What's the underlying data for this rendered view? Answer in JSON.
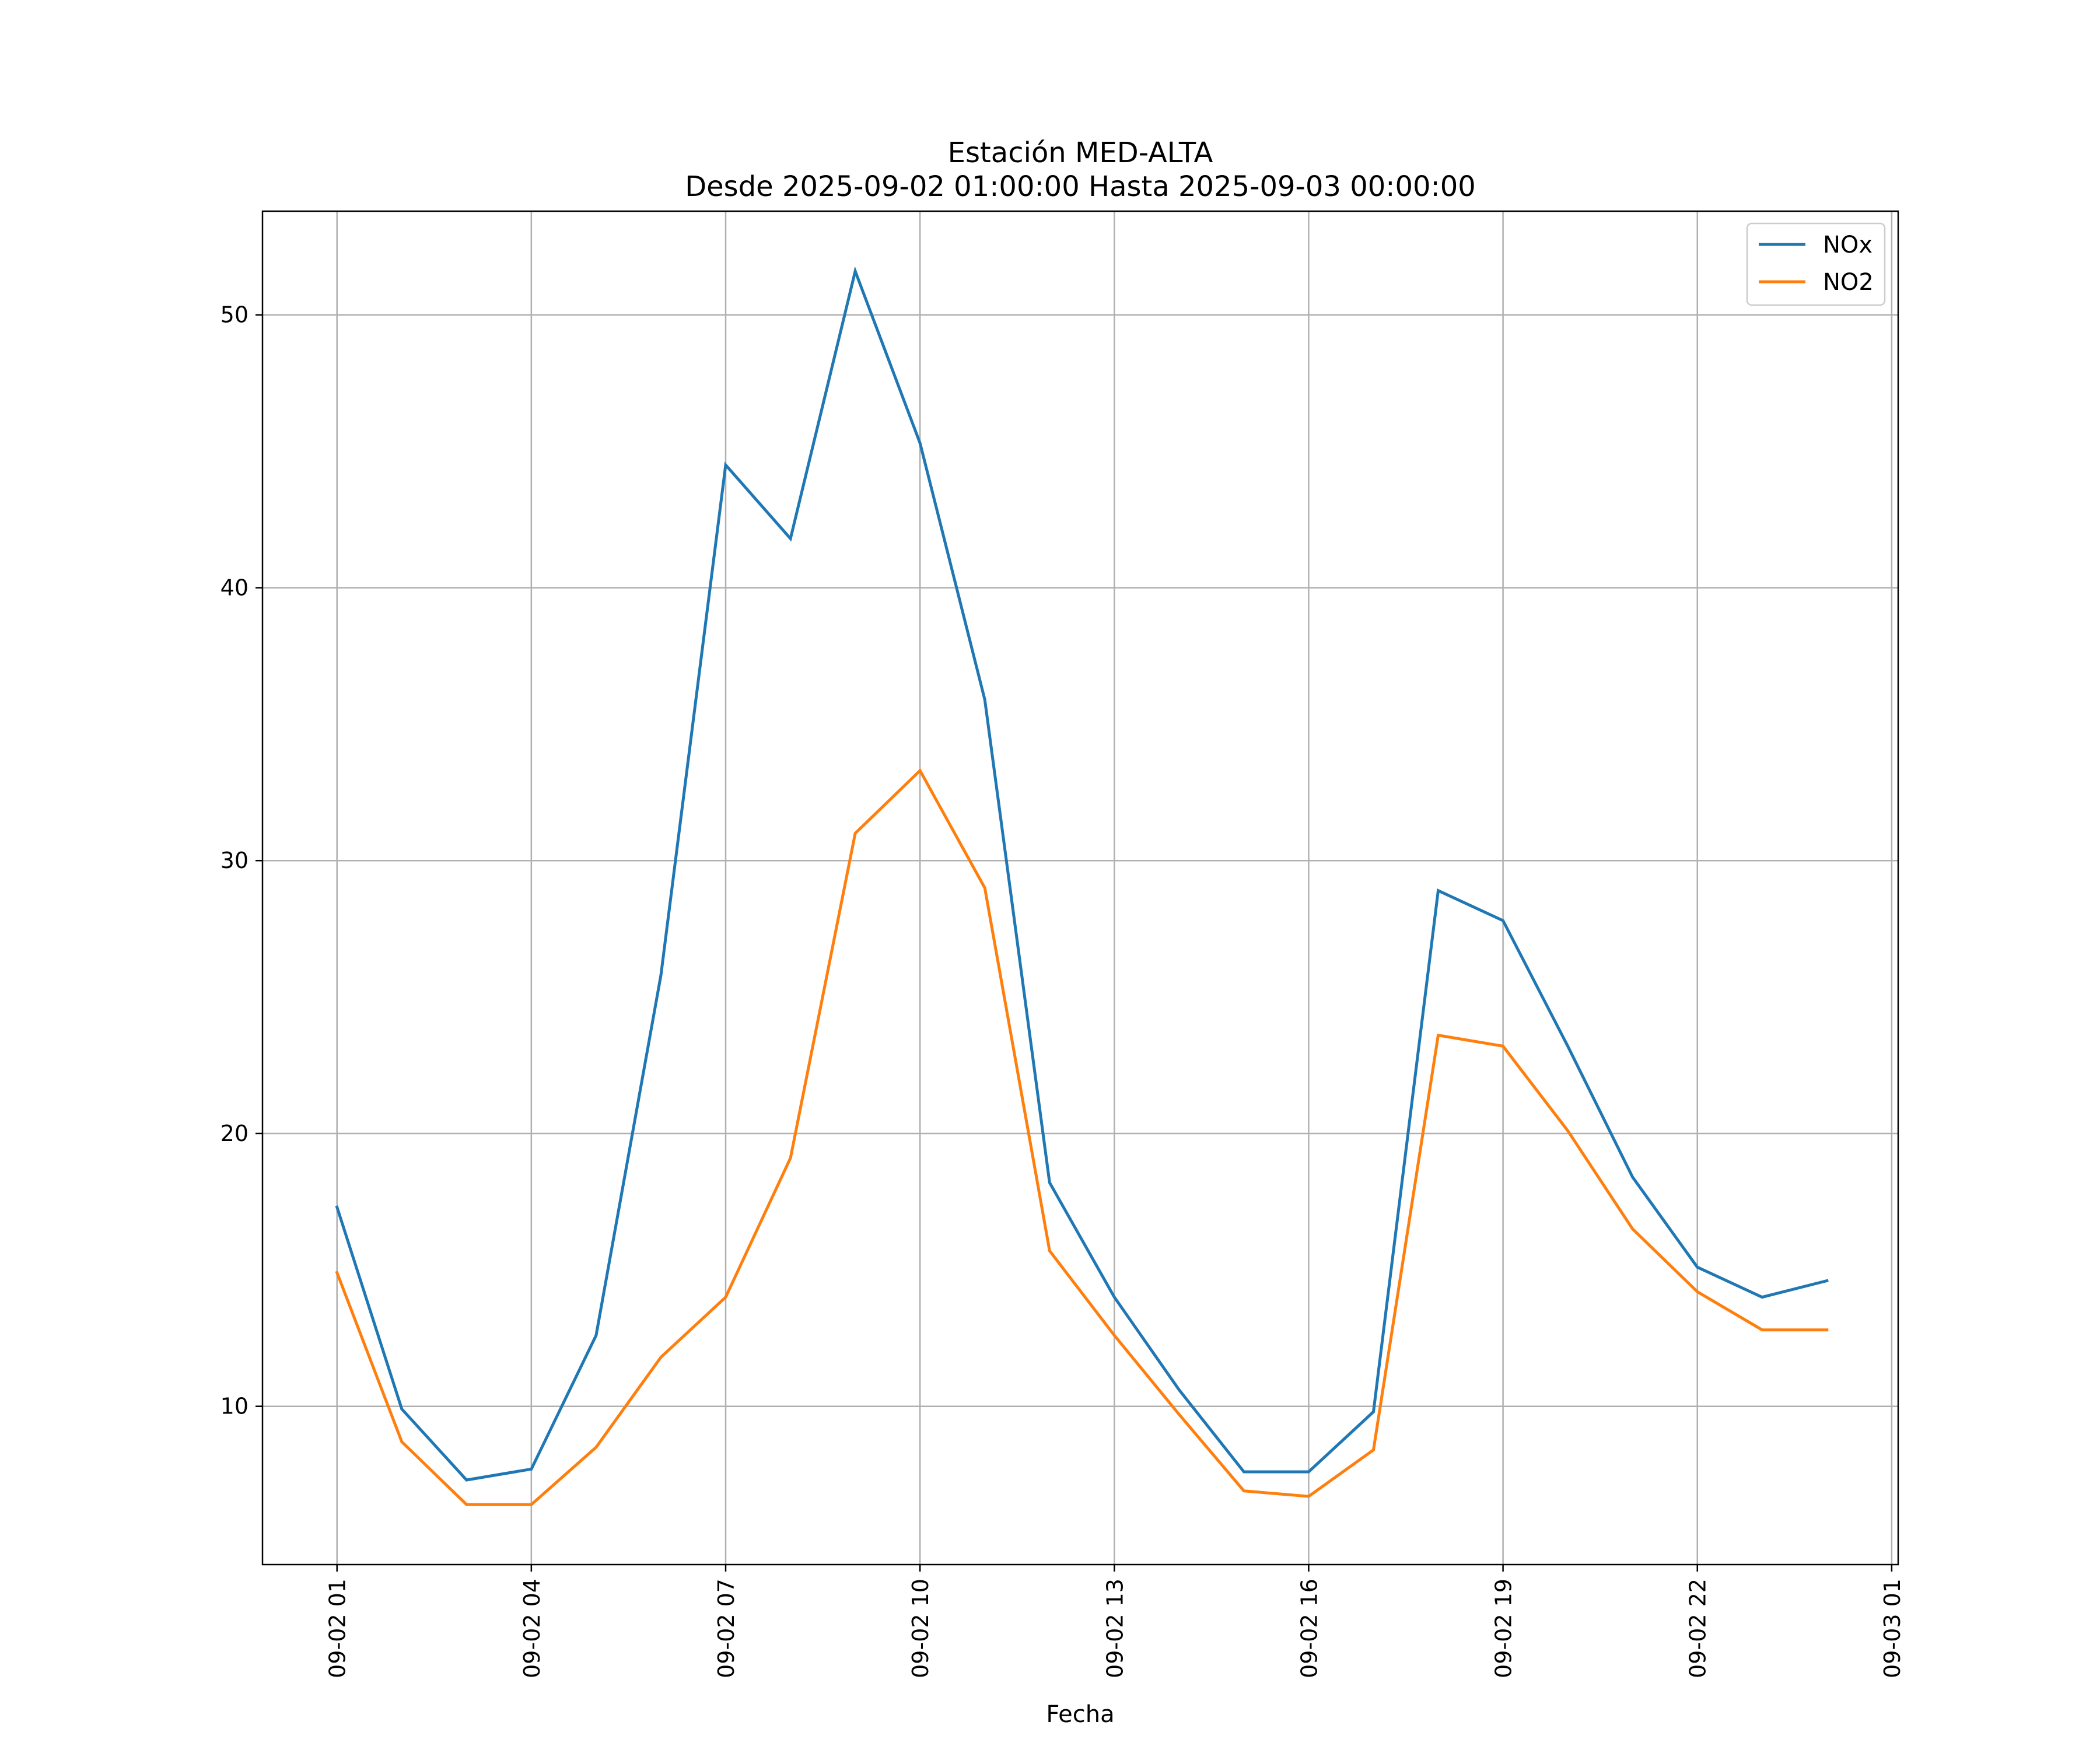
{
  "chart_data": {
    "type": "line",
    "title": "Estación MED-ALTA",
    "subtitle": "Desde 2025-09-02 01:00:00 Hasta 2025-09-03 00:00:00",
    "xlabel": "Fecha",
    "ylabel": "",
    "x": [
      "09-02 01",
      "09-02 02",
      "09-02 03",
      "09-02 04",
      "09-02 05",
      "09-02 06",
      "09-02 07",
      "09-02 08",
      "09-02 09",
      "09-02 10",
      "09-02 11",
      "09-02 12",
      "09-02 13",
      "09-02 14",
      "09-02 15",
      "09-02 16",
      "09-02 17",
      "09-02 18",
      "09-02 19",
      "09-02 20",
      "09-02 21",
      "09-02 22",
      "09-02 23",
      "09-03 00"
    ],
    "x_hours": [
      0,
      1,
      2,
      3,
      4,
      5,
      6,
      7,
      8,
      9,
      10,
      11,
      12,
      13,
      14,
      15,
      16,
      17,
      18,
      19,
      20,
      21,
      22,
      23
    ],
    "xlim_hours": [
      -1.15,
      24.1
    ],
    "xticks": [
      {
        "hour": 0,
        "label": "09-02 01"
      },
      {
        "hour": 3,
        "label": "09-02 04"
      },
      {
        "hour": 6,
        "label": "09-02 07"
      },
      {
        "hour": 9,
        "label": "09-02 10"
      },
      {
        "hour": 12,
        "label": "09-02 13"
      },
      {
        "hour": 15,
        "label": "09-02 16"
      },
      {
        "hour": 18,
        "label": "09-02 19"
      },
      {
        "hour": 21,
        "label": "09-02 22"
      },
      {
        "hour": 24,
        "label": "09-03 01"
      }
    ],
    "ylim": [
      4.2,
      53.8
    ],
    "yticks": [
      10,
      20,
      30,
      40,
      50
    ],
    "grid": true,
    "legend_position": "top-right",
    "series": [
      {
        "name": "NOx",
        "color": "#1f77b4",
        "values": [
          17.3,
          9.9,
          7.3,
          7.7,
          12.6,
          25.8,
          44.5,
          41.8,
          51.6,
          45.3,
          35.9,
          18.2,
          14.0,
          10.6,
          7.6,
          7.6,
          9.8,
          28.9,
          27.8,
          23.2,
          18.4,
          15.1,
          14.0,
          14.6
        ]
      },
      {
        "name": "NO2",
        "color": "#ff7f0e",
        "values": [
          14.9,
          8.7,
          6.4,
          6.4,
          8.5,
          11.8,
          14.0,
          19.1,
          31.0,
          33.3,
          29.0,
          15.7,
          12.6,
          9.7,
          6.9,
          6.7,
          8.4,
          23.6,
          23.2,
          20.1,
          16.5,
          14.2,
          12.8,
          12.8
        ]
      }
    ]
  }
}
